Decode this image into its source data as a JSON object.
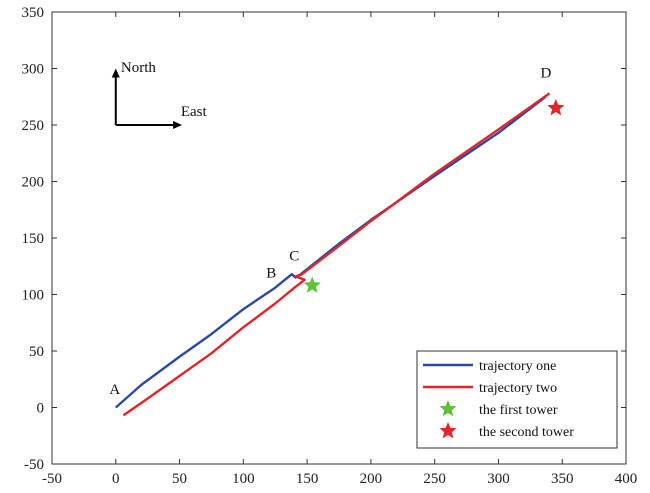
{
  "chart_data": {
    "type": "line",
    "title": "",
    "xlabel": "",
    "ylabel": "",
    "xlim": [
      -50,
      400
    ],
    "ylim": [
      -50,
      350
    ],
    "xticks": [
      -50,
      0,
      50,
      100,
      150,
      200,
      250,
      300,
      350,
      400
    ],
    "yticks": [
      -50,
      0,
      50,
      100,
      150,
      200,
      250,
      300,
      350
    ],
    "grid": false,
    "legend_position": "bottom-right",
    "series": [
      {
        "name": "trajectory one",
        "kind": "line",
        "color": "#2b4aa8",
        "points": [
          [
            0,
            0
          ],
          [
            20,
            20
          ],
          [
            50,
            45
          ],
          [
            75,
            65
          ],
          [
            100,
            87
          ],
          [
            125,
            106
          ],
          [
            138,
            118
          ],
          [
            141,
            115
          ],
          [
            145,
            118
          ],
          [
            175,
            145
          ],
          [
            200,
            166
          ],
          [
            250,
            205
          ],
          [
            300,
            243
          ],
          [
            337,
            275
          ]
        ]
      },
      {
        "name": "trajectory two",
        "kind": "line",
        "color": "#e0262b",
        "points": [
          [
            6,
            -7
          ],
          [
            25,
            8
          ],
          [
            50,
            28
          ],
          [
            75,
            48
          ],
          [
            100,
            71
          ],
          [
            125,
            92
          ],
          [
            140,
            106
          ],
          [
            148,
            113
          ],
          [
            141,
            116
          ],
          [
            146,
            118
          ],
          [
            175,
            143
          ],
          [
            200,
            165
          ],
          [
            250,
            207
          ],
          [
            300,
            246
          ],
          [
            340,
            278
          ]
        ]
      },
      {
        "name": "the first tower",
        "kind": "marker",
        "marker": "star",
        "color": "#62c13b",
        "points": [
          [
            154,
            108
          ]
        ]
      },
      {
        "name": "the second tower",
        "kind": "marker",
        "marker": "star",
        "color": "#e0262b",
        "points": [
          [
            345,
            265
          ]
        ]
      }
    ],
    "annotations": [
      {
        "text": "A",
        "x": -5,
        "y": 12
      },
      {
        "text": "B",
        "x": 118,
        "y": 115
      },
      {
        "text": "C",
        "x": 136,
        "y": 130
      },
      {
        "text": "D",
        "x": 333,
        "y": 292
      },
      {
        "text": "North",
        "x": 4,
        "y": 297
      },
      {
        "text": "East",
        "x": 51,
        "y": 258
      }
    ],
    "compass": {
      "origin": [
        0,
        250
      ],
      "north_to": [
        0,
        300
      ],
      "east_to": [
        52,
        250
      ],
      "north_label": "North",
      "east_label": "East"
    }
  }
}
